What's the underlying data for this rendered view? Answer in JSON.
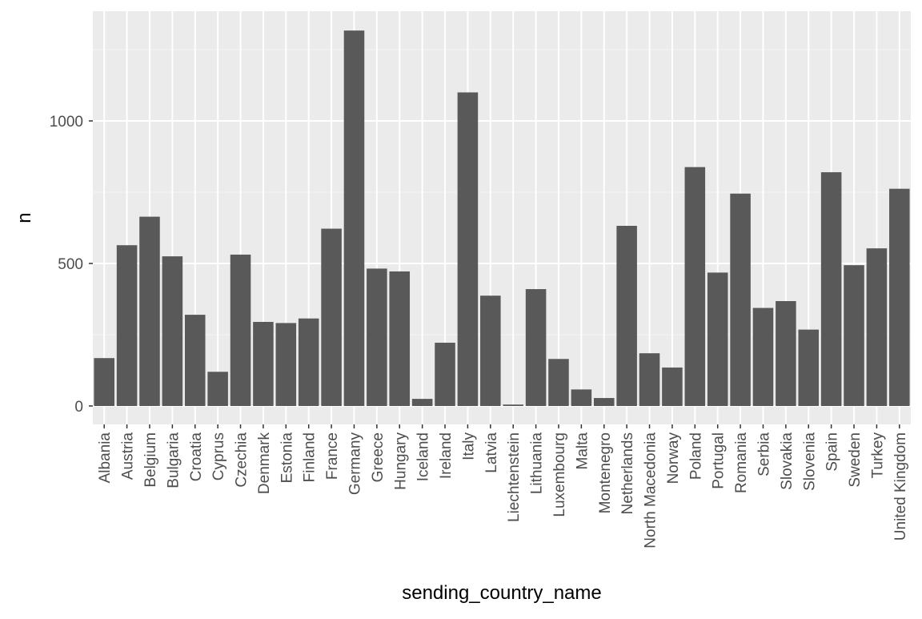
{
  "chart_data": {
    "type": "bar",
    "title": "",
    "xlabel": "sending_country_name",
    "ylabel": "n",
    "ylim": [
      0,
      1320
    ],
    "yticks": [
      0,
      500,
      1000
    ],
    "grid": true,
    "legend": "none",
    "categories": [
      "Albania",
      "Austria",
      "Belgium",
      "Bulgaria",
      "Croatia",
      "Cyprus",
      "Czechia",
      "Denmark",
      "Estonia",
      "Finland",
      "France",
      "Germany",
      "Greece",
      "Hungary",
      "Iceland",
      "Ireland",
      "Italy",
      "Latvia",
      "Liechtenstein",
      "Lithuania",
      "Luxembourg",
      "Malta",
      "Montenegro",
      "Netherlands",
      "North Macedonia",
      "Norway",
      "Poland",
      "Portugal",
      "Romania",
      "Serbia",
      "Slovakia",
      "Slovenia",
      "Spain",
      "Sweden",
      "Turkey",
      "United Kingdom"
    ],
    "values": [
      168,
      564,
      664,
      525,
      320,
      120,
      531,
      295,
      291,
      307,
      622,
      1317,
      482,
      472,
      25,
      222,
      1100,
      387,
      5,
      410,
      165,
      58,
      28,
      632,
      185,
      135,
      838,
      468,
      745,
      344,
      368,
      268,
      820,
      494,
      553,
      762
    ]
  },
  "colors": {
    "bar": "#595959",
    "panel": "#ebebeb",
    "grid_major": "#ffffff",
    "grid_minor": "#f5f5f5",
    "tick_text": "#4d4d4d",
    "axis_title": "#000000",
    "tick_mark": "#333333"
  }
}
